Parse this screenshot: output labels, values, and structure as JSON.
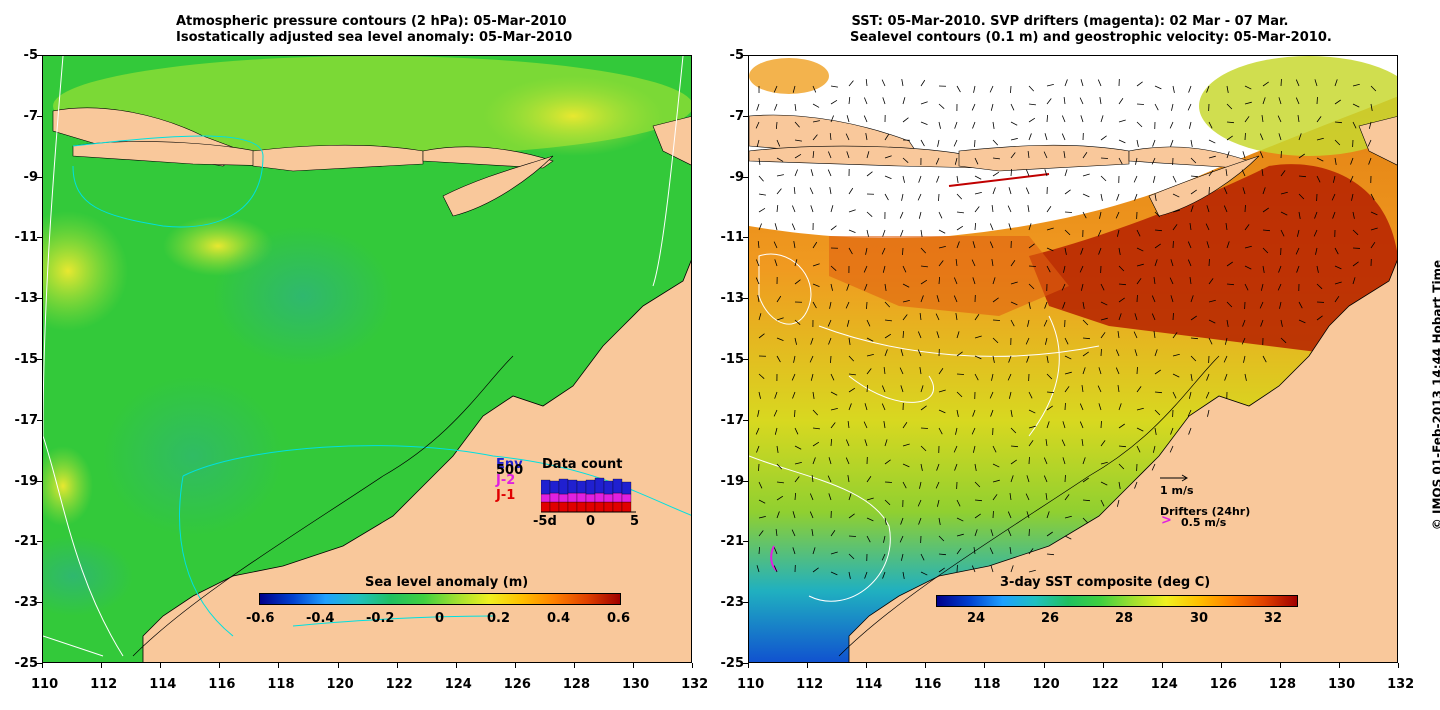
{
  "left_panel": {
    "title_line1": "Atmospheric pressure contours (2 hPa): 05-Mar-2010",
    "title_line2": "Isostatically adjusted sea level anomaly: 05-Mar-2010",
    "colorbar": {
      "title": "Sea level anomaly (m)",
      "ticks": [
        "-0.6",
        "-0.4",
        "-0.2",
        "0",
        "0.2",
        "0.4",
        "0.6"
      ]
    },
    "data_count": {
      "title": "Data count",
      "labels": [
        "Env",
        "500",
        "J-2",
        "J-1"
      ],
      "label_colors": [
        "#2020d0",
        "#000000",
        "#e020e0",
        "#e00000"
      ],
      "axis": [
        "-5d",
        "0",
        "5"
      ]
    }
  },
  "right_panel": {
    "title_line1": "SST: 05-Mar-2010. SVP drifters (magenta): 02 Mar - 07 Mar.",
    "title_line2": "Sealevel contours (0.1 m) and geostrophic velocity: 05-Mar-2010.",
    "colorbar": {
      "title": "3-day SST composite (deg C)",
      "ticks": [
        "24",
        "26",
        "28",
        "30",
        "32"
      ]
    },
    "velocity_legend": "1 m/s",
    "drifters_legend_title": "Drifters (24hr)",
    "drifters_legend_value": "0.5 m/s",
    "drifter_marker": ">",
    "drifter_color": "#e020e0"
  },
  "axes": {
    "lat_ticks": [
      "-5",
      "-7",
      "-9",
      "-11",
      "-13",
      "-15",
      "-17",
      "-19",
      "-21",
      "-23",
      "-25"
    ],
    "lon_ticks": [
      "110",
      "112",
      "114",
      "116",
      "118",
      "120",
      "122",
      "124",
      "126",
      "128",
      "130",
      "132"
    ]
  },
  "copyright": "© IMOS 01-Feb-2013 14:44 Hobart Time",
  "colors": {
    "land": "#f9c89b",
    "sea_green": "#33cc33",
    "contour_white": "#ffffff",
    "contour_cyan": "#00e0e0"
  }
}
